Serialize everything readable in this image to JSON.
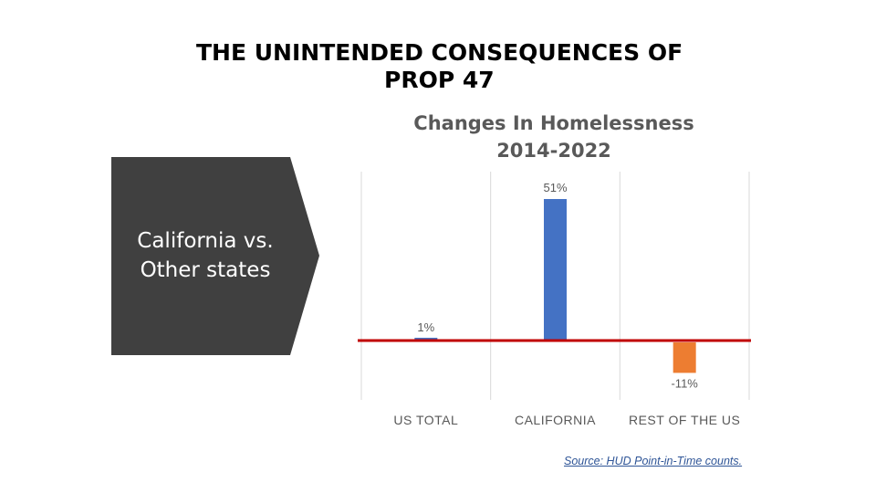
{
  "slide": {
    "title_line1": "THE UNINTENDED CONSEQUENCES OF",
    "title_line2": "PROP 47",
    "callout_line1": "California vs.",
    "callout_line2": "Other states",
    "source": "Source: HUD Point-in-Time counts."
  },
  "chart_data": {
    "type": "bar",
    "title_line1": "Changes In Homelessness",
    "title_line2": "2014-2022",
    "categories": [
      "US TOTAL",
      "CALIFORNIA",
      "REST OF THE US"
    ],
    "values": [
      1,
      51,
      -11
    ],
    "labels": [
      "1%",
      "51%",
      "-11%"
    ],
    "unit": "%",
    "colors": [
      "#4472c4",
      "#4472c4",
      "#ed7d31"
    ],
    "baseline_color": "#c00000",
    "grid": "vertical category separators",
    "legend": "none"
  },
  "colors": {
    "callout_fill": "#404040",
    "callout_text": "#ffffff",
    "chart_title": "#595959",
    "axis_text": "#595959",
    "source_link": "#2f5597"
  }
}
